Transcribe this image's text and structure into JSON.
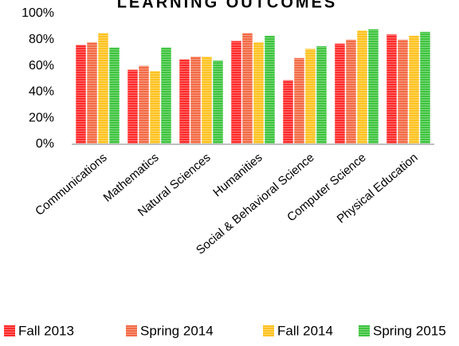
{
  "chart_data": {
    "type": "bar",
    "title": "LEARNING OUTCOMES",
    "categories": [
      "Communications",
      "Mathematics",
      "Natural Sciences",
      "Humanities",
      "Social & Behavioral Science",
      "Computer Science",
      "Physical Education"
    ],
    "series": [
      {
        "name": "Fall 2013",
        "color": "#ff2a2a",
        "values": [
          76,
          57,
          65,
          79,
          49,
          77,
          84
        ]
      },
      {
        "name": "Spring 2014",
        "color": "#f26a45",
        "values": [
          78,
          60,
          67,
          85,
          66,
          80,
          80
        ]
      },
      {
        "name": "Fall 2014",
        "color": "#ffc21f",
        "values": [
          85,
          56,
          67,
          78,
          73,
          87,
          83
        ]
      },
      {
        "name": "Spring 2015",
        "color": "#3ec43e",
        "values": [
          74,
          74,
          64,
          83,
          75,
          88,
          86
        ]
      }
    ],
    "ylim": [
      0,
      100
    ],
    "yticks": [
      {
        "value": 0,
        "label": "0%"
      },
      {
        "value": 20,
        "label": "20%"
      },
      {
        "value": 40,
        "label": "40%"
      },
      {
        "value": 60,
        "label": "60%"
      },
      {
        "value": 80,
        "label": "80%"
      },
      {
        "value": 100,
        "label": "100%"
      }
    ],
    "grid": false,
    "legend": "bottom"
  }
}
